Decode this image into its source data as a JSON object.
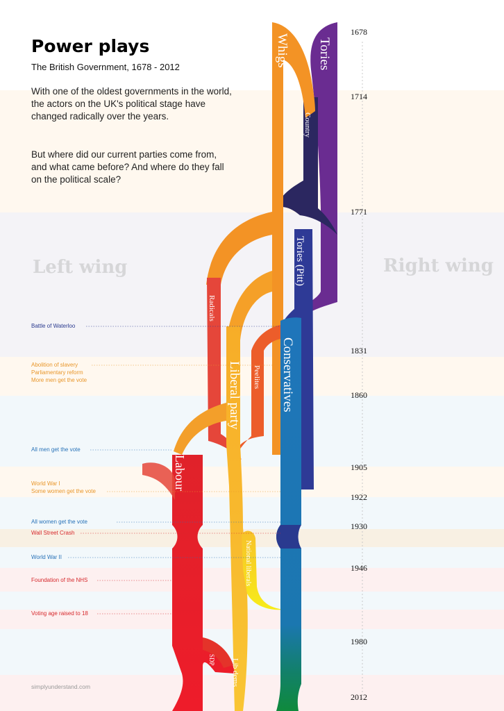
{
  "title": "Power plays",
  "subtitle": "The British Government, 1678 - 2012",
  "intro": [
    "With one of the oldest governments in the world, the actors on the UK's political stage have changed radically over the years.",
    "But where did our current parties come from, and what came before? And where do they fall on the political scale?"
  ],
  "left_wing_label": "Left wing",
  "right_wing_label": "Right wing",
  "years": [
    "1678",
    "1714",
    "1771",
    "1831",
    "1860",
    "1905",
    "1922",
    "1930",
    "1946",
    "1980",
    "2012"
  ],
  "events": [
    {
      "text": "Battle of Waterloo",
      "color": "#2a3a8f"
    },
    {
      "text": "Abolition of slavery",
      "color": "#e8962a"
    },
    {
      "text": "Parliamentary reform",
      "color": "#e8962a"
    },
    {
      "text": "More men get the vote",
      "color": "#e8962a"
    },
    {
      "text": "All men get the vote",
      "color": "#2872b8"
    },
    {
      "text": "World War I",
      "color": "#e8962a"
    },
    {
      "text": "Some women get the vote",
      "color": "#e8962a"
    },
    {
      "text": "All women get the vote",
      "color": "#2872b8"
    },
    {
      "text": "Wall Street Crash",
      "color": "#d6282c"
    },
    {
      "text": "World War II",
      "color": "#2872b8"
    },
    {
      "text": "Foundation of the NHS",
      "color": "#d6282c"
    },
    {
      "text": "Voting age raised to 18",
      "color": "#d6282c"
    }
  ],
  "parties": {
    "whigs": "Whigs",
    "tories": "Tories",
    "country": "Country",
    "tories_pitt": "Tories (Pitt)",
    "radicals": "Radicals",
    "liberal": "Liberal party",
    "peelites": "Peelites",
    "conservatives": "Conservatives",
    "labour": "Labour",
    "national_liberals": "National liberals",
    "sdp": "SDP",
    "lib_dems": "Lib dems"
  },
  "colors": {
    "whigs": "#f39325",
    "tories": "#6a2c91",
    "country": "#2b2760",
    "tories_pitt": "#2e3a96",
    "radicals": "#e5463a",
    "liberal": "#f7ae28",
    "peelites": "#ec5d2a",
    "conservatives": "#1f75ba",
    "labour": "#e3202a",
    "national_liberals": "#f6e21a",
    "lib_dems": "#f7b52a"
  },
  "footer": "simplyunderstand.com"
}
